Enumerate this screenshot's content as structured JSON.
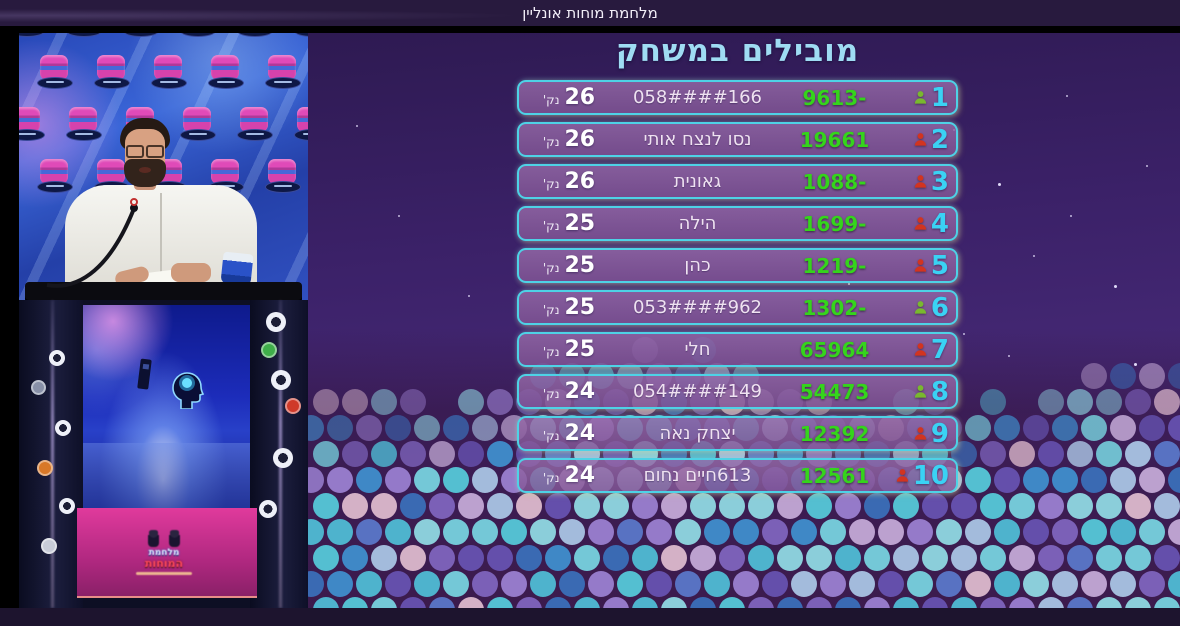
{
  "header": {
    "title": "מלחמת מוחות אונליין"
  },
  "leaderboard": {
    "title": "מובילים במשחק",
    "points_suffix": "נק'",
    "rows": [
      {
        "rank": "1",
        "icon": "green",
        "score": "-9613",
        "name": "058####166",
        "points": "26"
      },
      {
        "rank": "2",
        "icon": "red",
        "score": "19661",
        "name": "נסו לנצח אותי",
        "points": "26"
      },
      {
        "rank": "3",
        "icon": "red",
        "score": "-1088",
        "name": "גאונית",
        "points": "26"
      },
      {
        "rank": "4",
        "icon": "red",
        "score": "-1699",
        "name": "הילה",
        "points": "25"
      },
      {
        "rank": "5",
        "icon": "red",
        "score": "-1219",
        "name": "כהן",
        "points": "25"
      },
      {
        "rank": "6",
        "icon": "green",
        "score": "-1302",
        "name": "053####962",
        "points": "25"
      },
      {
        "rank": "7",
        "icon": "red",
        "score": "65964",
        "name": "חלי",
        "points": "25"
      },
      {
        "rank": "8",
        "icon": "green",
        "score": "54473",
        "name": "054####149",
        "points": "24"
      },
      {
        "rank": "9",
        "icon": "red",
        "score": "12392",
        "name": "יצחק נאה",
        "points": "24"
      },
      {
        "rank": "10",
        "icon": "red",
        "score": "12561",
        "name": "613חיים נחום",
        "points": "24"
      }
    ]
  },
  "podium_logo": {
    "line1": "מלחמת",
    "line2": "המוחות"
  },
  "colors": {
    "title_blue": "#9fdcf3",
    "rank_cyan": "#3ad2f4",
    "score_green": "#35d41c",
    "icon_green": "#79b82e",
    "icon_red": "#d23420",
    "name_text": "#efe2f1",
    "row_border": "#4ed2e6"
  }
}
